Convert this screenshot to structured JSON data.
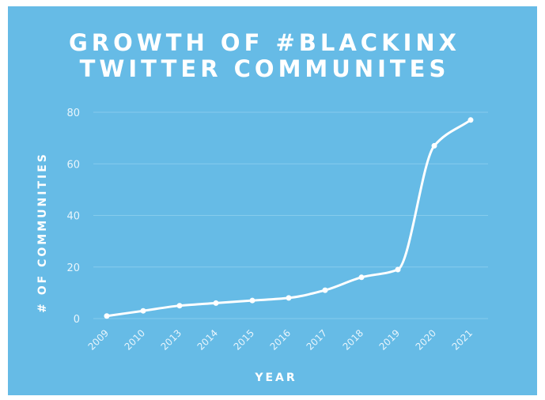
{
  "chart_data": {
    "type": "line",
    "title_line1": "GROWTH OF #BLACKINX",
    "title_line2": "TWITTER COMMUNITES",
    "xlabel": "YEAR",
    "ylabel": "# OF COMMUNITIES",
    "categories": [
      "2009",
      "2010",
      "2013",
      "2014",
      "2015",
      "2016",
      "2017",
      "2018",
      "2019",
      "2020",
      "2021"
    ],
    "values": [
      1,
      3,
      5,
      6,
      7,
      8,
      11,
      16,
      19,
      67,
      77
    ],
    "yticks": [
      0,
      20,
      40,
      60,
      80
    ],
    "ylim": [
      0,
      80
    ],
    "grid": true,
    "colors": {
      "background": "#66bbe6",
      "line": "#ffffff",
      "grid": "#86cbed"
    }
  }
}
